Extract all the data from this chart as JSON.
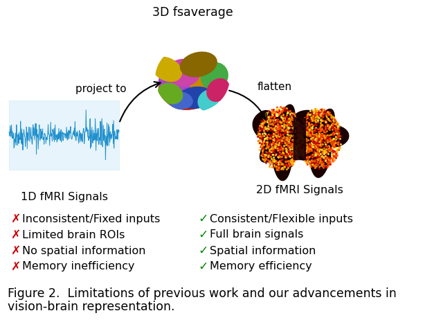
{
  "title": "3D fsaverage",
  "label_1d": "1D fMRI Signals",
  "label_2d": "2D fMRI Signals",
  "arrow_project": "project to",
  "arrow_flatten": "flatten",
  "neg_items": [
    "Inconsistent/Fixed inputs",
    "Limited brain ROIs",
    "No spatial information",
    "Memory inefficiency"
  ],
  "pos_items": [
    "Consistent/Flexible inputs",
    "Full brain signals",
    "Spatial information",
    "Memory efficiency"
  ],
  "caption_line1": "Figure 2.  Limitations of previous work and our advancements in",
  "caption_line2": "vision-brain representation.",
  "neg_color": "#cc0000",
  "pos_color": "#008800",
  "text_color": "#000000",
  "bg_color": "#ffffff",
  "signal_color": "#2090cc",
  "caption_fontsize": 12.5,
  "label_fontsize": 11.5,
  "item_fontsize": 11.5,
  "arrow_fontsize": 11.0,
  "title_fontsize": 12.5
}
